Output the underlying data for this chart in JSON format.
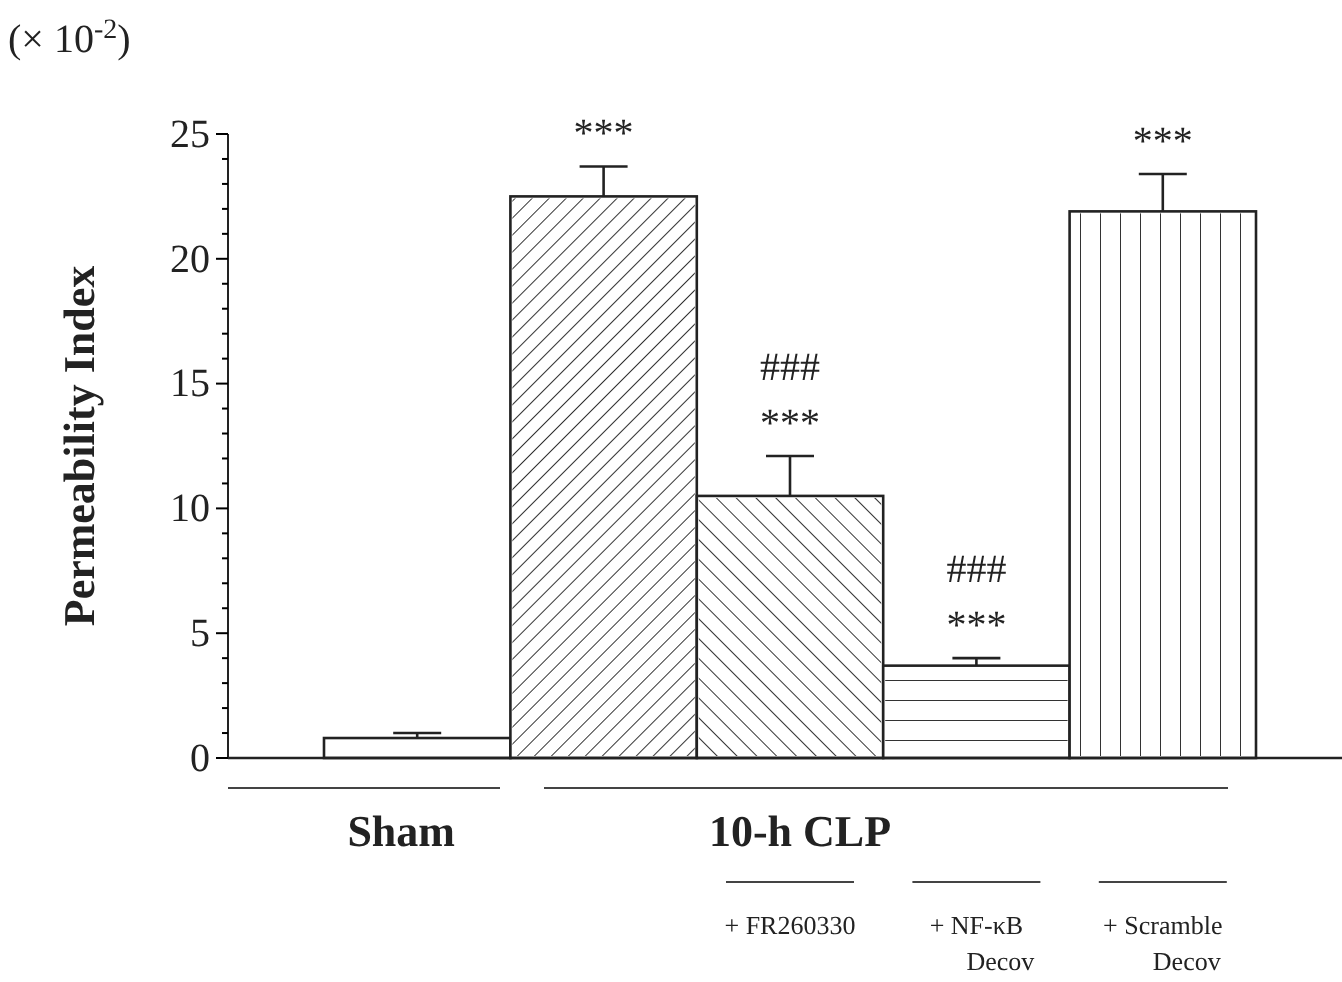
{
  "chart_data": {
    "type": "bar",
    "ylabel": "Permeability Index",
    "categories": [
      "Sham",
      null,
      "+ FR260330",
      "+ NF-κB Decov",
      "+ Scramble Decov"
    ],
    "values": [
      0.8,
      22.5,
      10.5,
      3.7,
      21.9
    ],
    "errors": [
      0.2,
      1.2,
      1.6,
      0.3,
      1.5
    ],
    "colors": [
      "#ffffff",
      "#ffffff",
      "#ffffff",
      "#ffffff",
      "#ffffff"
    ],
    "value_labels": [
      null,
      "***",
      "###\n***",
      "###\n***",
      "***"
    ],
    "ylim": [
      0,
      25
    ],
    "yticks": [
      0,
      {
        "value": 1,
        "label": null
      },
      {
        "value": 2,
        "label": null
      },
      {
        "value": 3,
        "label": null
      },
      {
        "value": 4,
        "label": null
      },
      5,
      {
        "value": 6,
        "label": null
      },
      {
        "value": 7,
        "label": null
      },
      {
        "value": 8,
        "label": null
      },
      {
        "value": 9,
        "label": null
      },
      10,
      {
        "value": 11,
        "label": null
      },
      {
        "value": 12,
        "label": null
      },
      {
        "value": 13,
        "label": null
      },
      {
        "value": 14,
        "label": null
      },
      15,
      {
        "value": 16,
        "label": null
      },
      {
        "value": 17,
        "label": null
      },
      {
        "value": 18,
        "label": null
      },
      {
        "value": 19,
        "label": null
      },
      20,
      {
        "value": 21,
        "label": null
      },
      {
        "value": 22,
        "label": null
      },
      {
        "value": 23,
        "label": null
      },
      {
        "value": 24,
        "label": null
      },
      25
    ],
    "annotations": [
      "(× 10$^{-2}$)",
      "10-h CLP"
    ],
    "grid": false
  }
}
